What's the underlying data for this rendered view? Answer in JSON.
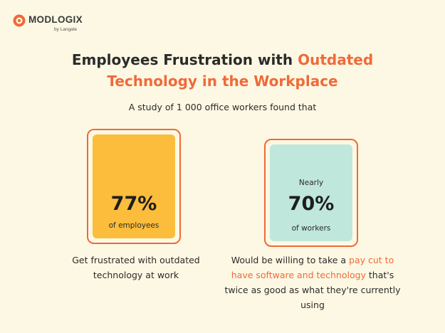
{
  "brand": {
    "name": "MODLOGIX",
    "tagline": "by Langate",
    "accent_color": "#ef6a3a"
  },
  "title": {
    "part1": "Employees Frustration with ",
    "part2": "Outdated",
    "part3": "Technology in the Workplace"
  },
  "subtitle": "A study of 1 000 office workers found that",
  "stats": [
    {
      "pre_label": "",
      "value": "77%",
      "label": "of employees",
      "card_color": "#fbbd3b",
      "description": {
        "text_before": "Get frustrated with outdated technology at work",
        "highlight": "",
        "text_after": ""
      }
    },
    {
      "pre_label": "Nearly",
      "value": "70%",
      "label": "of workers",
      "card_color": "#bfe7dc",
      "description": {
        "text_before": "Would be willing to take a ",
        "highlight": "pay cut to have software and technology",
        "text_after": " that's twice as good as what they're currently using"
      }
    }
  ]
}
